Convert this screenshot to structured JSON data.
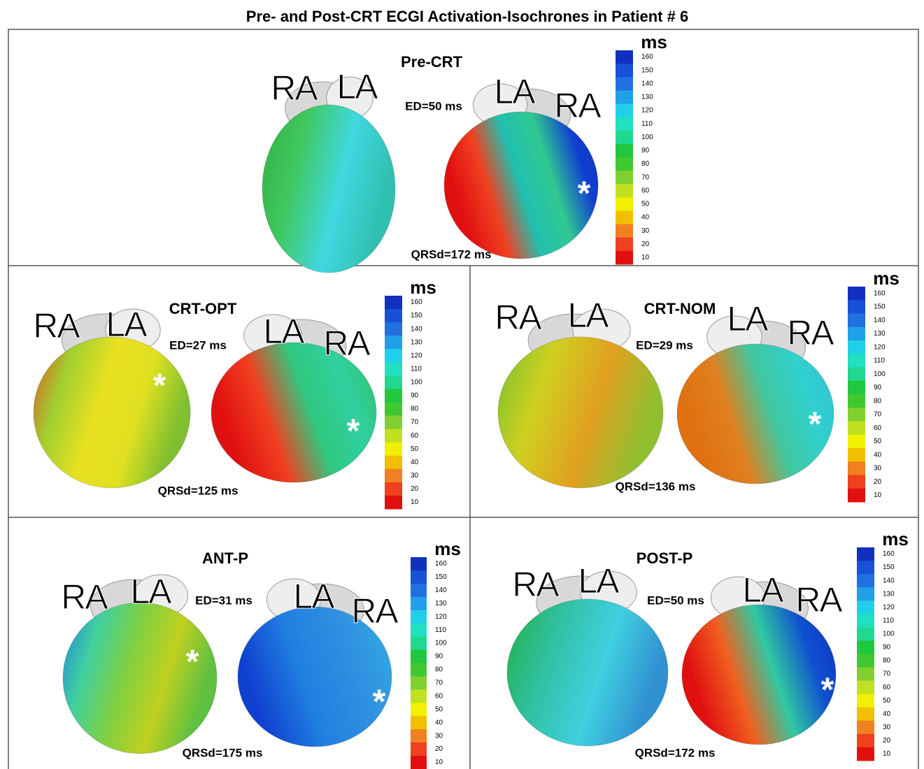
{
  "title": "Pre- and Post-CRT ECGI Activation-Isochrones in Patient # 6",
  "colorbar": {
    "unit": "ms",
    "ticks": [
      160,
      150,
      140,
      130,
      120,
      110,
      100,
      90,
      80,
      70,
      60,
      50,
      40,
      30,
      20,
      10
    ],
    "colors": [
      "#1030c0",
      "#1850d8",
      "#2070e0",
      "#20a0e8",
      "#20d0e8",
      "#20e0c0",
      "#20d890",
      "#20c840",
      "#40c830",
      "#80d030",
      "#c0e020",
      "#f0f000",
      "#f0c000",
      "#f08020",
      "#f04020",
      "#e01010"
    ]
  },
  "panels": [
    {
      "name": "Pre-CRT",
      "ed": "ED=50 ms",
      "qrsd": "QRSd=172 ms",
      "views": [
        [
          "RA",
          "LA"
        ],
        [
          "LA",
          "RA"
        ]
      ],
      "pacing_marks": [
        "*"
      ]
    },
    {
      "name": "CRT-OPT",
      "ed": "ED=27 ms",
      "qrsd": "QRSd=125 ms",
      "views": [
        [
          "RA",
          "LA"
        ],
        [
          "LA",
          "RA"
        ]
      ],
      "pacing_marks": [
        "*",
        "*"
      ]
    },
    {
      "name": "CRT-NOM",
      "ed": "ED=29 ms",
      "qrsd": "QRSd=136 ms",
      "views": [
        [
          "RA",
          "LA"
        ],
        [
          "LA",
          "RA"
        ]
      ],
      "pacing_marks": [
        "*"
      ]
    },
    {
      "name": "ANT-P",
      "ed": "ED=31 ms",
      "qrsd": "QRSd=175 ms",
      "views": [
        [
          "RA",
          "LA"
        ],
        [
          "LA",
          "RA"
        ]
      ],
      "pacing_marks": [
        "*",
        "*"
      ]
    },
    {
      "name": "POST-P",
      "ed": "ED=50 ms",
      "qrsd": "QRSd=172 ms",
      "views": [
        [
          "RA",
          "LA"
        ],
        [
          "LA",
          "RA"
        ]
      ],
      "pacing_marks": [
        "*"
      ]
    }
  ]
}
